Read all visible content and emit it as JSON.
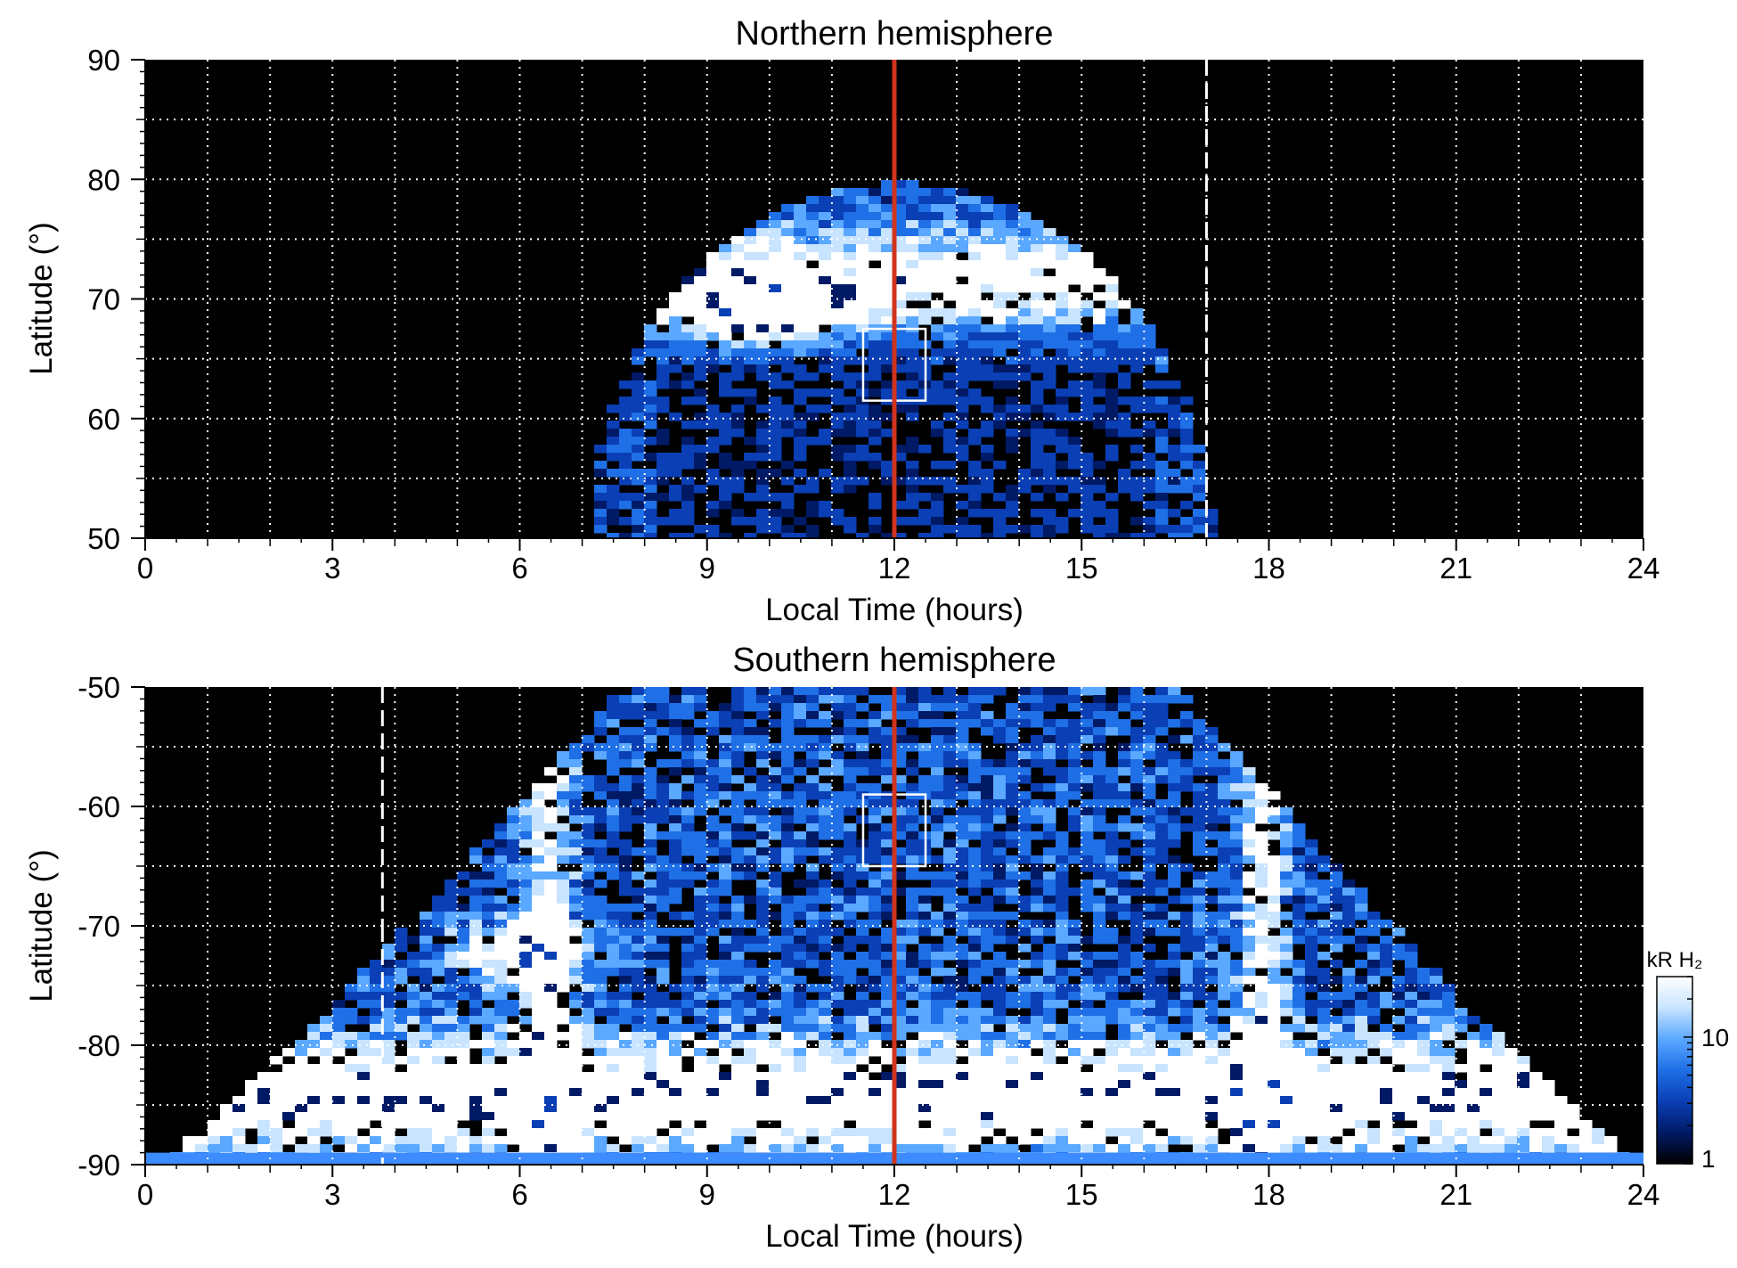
{
  "chart_data": [
    {
      "type": "heatmap",
      "title": "Northern hemisphere",
      "xlabel": "Local Time (hours)",
      "ylabel": "Latitude (°)",
      "xlim": [
        0,
        24
      ],
      "ylim": [
        50,
        90
      ],
      "xticks": [
        "0",
        "3",
        "6",
        "9",
        "12",
        "15",
        "18",
        "21",
        "24"
      ],
      "yticks": [
        "50",
        "60",
        "70",
        "80",
        "90"
      ],
      "grid": true,
      "background": "#000000",
      "reference_line": {
        "x": 12,
        "color": "#d0341e"
      },
      "dashed_line": {
        "x": 17,
        "color": "#ffffff"
      },
      "box": {
        "x": [
          11.5,
          12.5
        ],
        "y": [
          61.5,
          67.5
        ]
      },
      "emission_extent": {
        "lt_min": 7,
        "lt_max": 17,
        "lat_top": 80
      },
      "bright_patch": {
        "lt": 9.8,
        "lat": 69
      }
    },
    {
      "type": "heatmap",
      "title": "Southern hemisphere",
      "xlabel": "Local Time (hours)",
      "ylabel": "Latitude (°)",
      "xlim": [
        0,
        24
      ],
      "ylim": [
        -90,
        -50
      ],
      "xticks": [
        "0",
        "3",
        "6",
        "9",
        "12",
        "15",
        "18",
        "21",
        "24"
      ],
      "yticks": [
        "-90",
        "-80",
        "-70",
        "-60",
        "-50"
      ],
      "grid": true,
      "background": "#000000",
      "reference_line": {
        "x": 12,
        "color": "#d0341e"
      },
      "dashed_line": {
        "x": 3.8,
        "color": "#ffffff"
      },
      "box": {
        "x": [
          11.5,
          12.5
        ],
        "y": [
          -65,
          -59
        ]
      },
      "emission_extent": {
        "lt_min": 0,
        "lt_max": 24,
        "lat_top": -50
      },
      "bright_patch": {
        "lt": 6.0,
        "lat": -72
      }
    }
  ],
  "colorbar": {
    "label": "kR H₂",
    "ticks": [
      "1",
      "10"
    ],
    "colors": [
      "#000000",
      "#001a66",
      "#0a3fb5",
      "#1f6fe6",
      "#5aa8ff",
      "#c8e4ff",
      "#ffffff"
    ]
  }
}
